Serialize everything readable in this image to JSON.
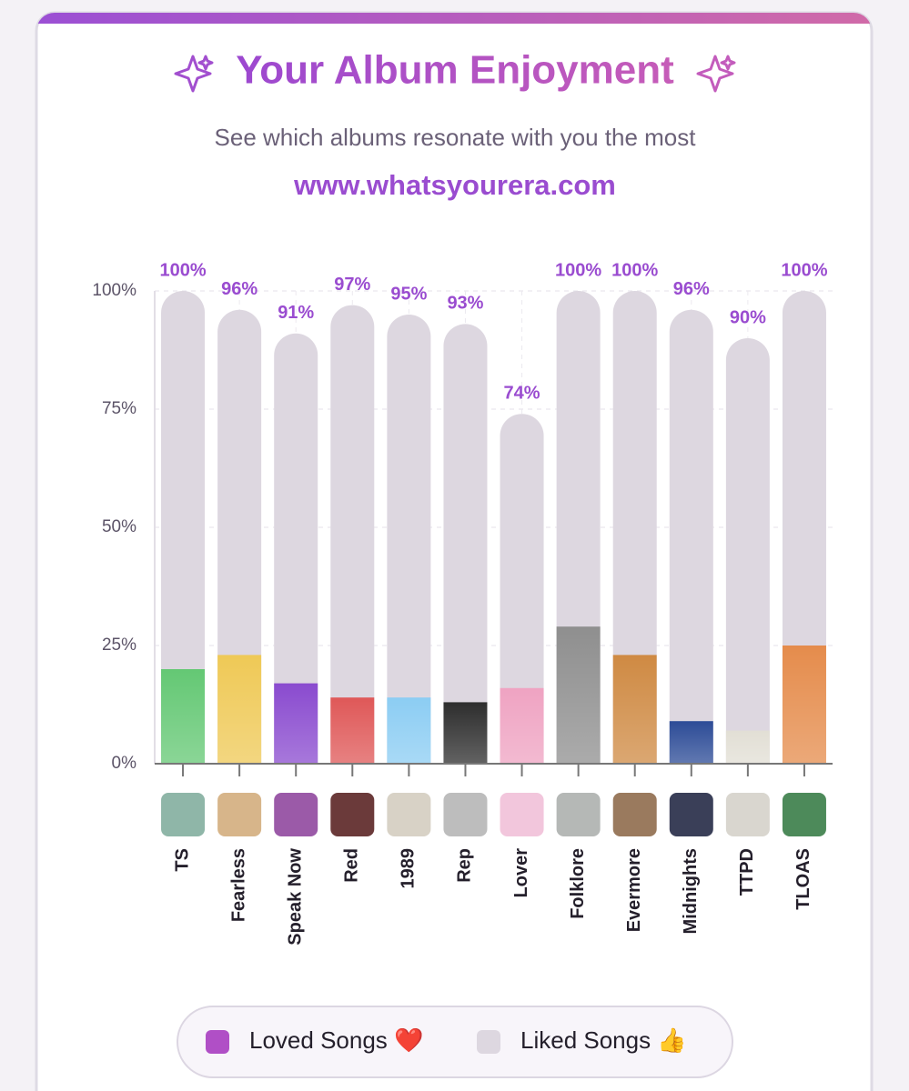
{
  "chart_data": {
    "type": "bar",
    "title": "Your Album Enjoyment",
    "subtitle": "See which albums resonate with you the most",
    "url": "www.whatsyourera.com",
    "categories": [
      "TS",
      "Fearless",
      "Speak Now",
      "Red",
      "1989",
      "Rep",
      "Lover",
      "Folklore",
      "Evermore",
      "Midnights",
      "TTPD",
      "TLOAS"
    ],
    "series": [
      {
        "name": "Loved Songs ❤️",
        "color": "#b04fc6",
        "colors": [
          "#64c874",
          "#efc956",
          "#8a4bcf",
          "#df5858",
          "#8ccdf3",
          "#2e2e2e",
          "#efa3c2",
          "#8f8f8f",
          "#cf8a43",
          "#2d4c97",
          "#e2dfd5",
          "#e58c4c"
        ],
        "values": [
          20,
          23,
          17,
          14,
          14,
          13,
          16,
          29,
          23,
          9,
          7,
          25
        ]
      },
      {
        "name": "Liked Songs 👍",
        "color": "#ddd7e0",
        "values": [
          100,
          96,
          91,
          97,
          95,
          93,
          74,
          100,
          100,
          96,
          90,
          100
        ],
        "value_labels": [
          "100%",
          "96%",
          "91%",
          "97%",
          "95%",
          "93%",
          "74%",
          "100%",
          "100%",
          "96%",
          "90%",
          "100%"
        ]
      }
    ],
    "ylim": [
      0,
      100
    ],
    "yticks": [
      {
        "value": 0,
        "label": "0%"
      },
      {
        "value": 25,
        "label": "25%"
      },
      {
        "value": 50,
        "label": "50%"
      },
      {
        "value": 75,
        "label": "75%"
      },
      {
        "value": 100,
        "label": "100%"
      }
    ],
    "grid": true
  }
}
